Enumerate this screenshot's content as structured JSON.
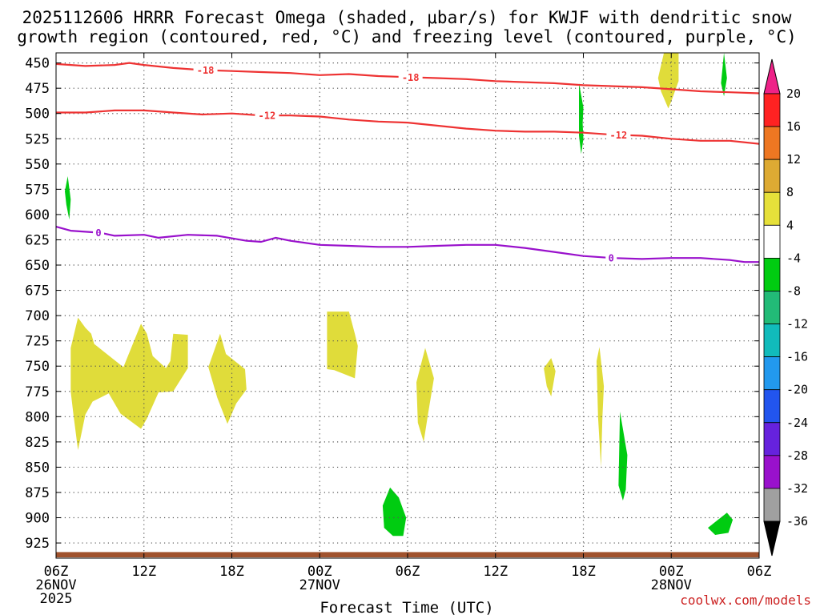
{
  "chart_data": {
    "type": "time-height",
    "title_line1": "2025112606 HRRR Forecast Omega (shaded, μbar/s) for KWJF with dendritic snow",
    "title_line2": "growth region (contoured, red, °C) and freezing level (contoured, purple, °C)",
    "xlabel": "Forecast Time (UTC)",
    "credit": "coolwx.com/models",
    "x_range_hours": [
      0,
      48
    ],
    "y_range_mb": [
      440,
      940
    ],
    "y_ticks": [
      450,
      475,
      500,
      525,
      550,
      575,
      600,
      625,
      650,
      675,
      700,
      725,
      750,
      775,
      800,
      825,
      850,
      875,
      900,
      925
    ],
    "x_ticks": [
      {
        "h": 0,
        "label": "06Z",
        "date": "26NOV",
        "year": "2025"
      },
      {
        "h": 6,
        "label": "12Z"
      },
      {
        "h": 12,
        "label": "18Z"
      },
      {
        "h": 18,
        "label": "00Z",
        "date": "27NOV"
      },
      {
        "h": 24,
        "label": "06Z"
      },
      {
        "h": 30,
        "label": "12Z"
      },
      {
        "h": 36,
        "label": "18Z"
      },
      {
        "h": 42,
        "label": "00Z",
        "date": "28NOV"
      },
      {
        "h": 48,
        "label": "06Z"
      }
    ],
    "contours": [
      {
        "name": "-18 C isotherm",
        "value": "-18",
        "color": "#ee3333",
        "label_h": [
          10.2,
          24.2
        ],
        "points": [
          [
            0,
            451
          ],
          [
            2,
            453
          ],
          [
            4,
            452
          ],
          [
            5,
            450
          ],
          [
            6,
            452
          ],
          [
            8,
            455
          ],
          [
            10,
            457
          ],
          [
            12,
            458
          ],
          [
            14,
            459
          ],
          [
            16,
            460
          ],
          [
            18,
            462
          ],
          [
            20,
            461
          ],
          [
            22,
            463
          ],
          [
            24,
            464
          ],
          [
            26,
            465
          ],
          [
            28,
            466
          ],
          [
            30,
            468
          ],
          [
            32,
            469
          ],
          [
            34,
            470
          ],
          [
            36,
            472
          ],
          [
            38,
            473
          ],
          [
            40,
            474
          ],
          [
            42,
            476
          ],
          [
            44,
            478
          ],
          [
            46,
            479
          ],
          [
            48,
            480
          ]
        ]
      },
      {
        "name": "-12 C isotherm",
        "value": "-12",
        "color": "#ee3333",
        "label_h": [
          14.4,
          38.4
        ],
        "points": [
          [
            0,
            499
          ],
          [
            2,
            499
          ],
          [
            4,
            497
          ],
          [
            6,
            497
          ],
          [
            8,
            499
          ],
          [
            10,
            501
          ],
          [
            12,
            500
          ],
          [
            14,
            502
          ],
          [
            16,
            502
          ],
          [
            18,
            503
          ],
          [
            20,
            506
          ],
          [
            22,
            508
          ],
          [
            24,
            509
          ],
          [
            26,
            512
          ],
          [
            28,
            515
          ],
          [
            30,
            517
          ],
          [
            32,
            518
          ],
          [
            34,
            518
          ],
          [
            36,
            519
          ],
          [
            38,
            521
          ],
          [
            40,
            522
          ],
          [
            42,
            525
          ],
          [
            44,
            527
          ],
          [
            46,
            527
          ],
          [
            48,
            530
          ]
        ]
      },
      {
        "name": "0 C freezing level",
        "value": "0",
        "color": "#9911cc",
        "label_h": [
          2.9,
          37.9
        ],
        "points": [
          [
            0,
            612
          ],
          [
            1,
            616
          ],
          [
            3,
            618
          ],
          [
            4,
            621
          ],
          [
            6,
            620
          ],
          [
            7,
            623
          ],
          [
            9,
            620
          ],
          [
            11,
            621
          ],
          [
            13,
            626
          ],
          [
            14,
            627
          ],
          [
            15,
            623
          ],
          [
            16,
            626
          ],
          [
            18,
            630
          ],
          [
            20,
            631
          ],
          [
            22,
            632
          ],
          [
            24,
            632
          ],
          [
            26,
            631
          ],
          [
            28,
            630
          ],
          [
            30,
            630
          ],
          [
            32,
            633
          ],
          [
            34,
            637
          ],
          [
            36,
            641
          ],
          [
            38,
            643
          ],
          [
            40,
            644
          ],
          [
            42,
            643
          ],
          [
            44,
            643
          ],
          [
            46,
            645
          ],
          [
            47,
            647
          ],
          [
            48,
            647
          ]
        ]
      }
    ],
    "shaded_regions": [
      {
        "level": "4 to 8",
        "color": "#e0dc3a",
        "points": [
          [
            41.5,
            440
          ],
          [
            42.5,
            440
          ],
          [
            42.5,
            468
          ],
          [
            42,
            488
          ],
          [
            41.8,
            495
          ],
          [
            41.3,
            478
          ],
          [
            41.1,
            465
          ]
        ]
      },
      {
        "level": "-4 to -8",
        "color": "#00cc11",
        "points": [
          [
            45.6,
            440
          ],
          [
            45.8,
            465
          ],
          [
            45.6,
            483
          ],
          [
            45.4,
            470
          ]
        ]
      },
      {
        "level": "-4 to -8",
        "color": "#00cc11",
        "points": [
          [
            36,
            494
          ],
          [
            35.95,
            510
          ],
          [
            36,
            525
          ],
          [
            35.85,
            540
          ],
          [
            35.7,
            522
          ],
          [
            35.7,
            470
          ]
        ]
      },
      {
        "level": "-4 to -8",
        "color": "#00cc11",
        "points": [
          [
            0.8,
            562
          ],
          [
            1,
            585
          ],
          [
            0.9,
            605
          ],
          [
            0.7,
            590
          ],
          [
            0.6,
            577
          ]
        ]
      },
      {
        "level": "4 to 8",
        "color": "#e0dc3a",
        "points": [
          [
            1,
            732
          ],
          [
            1.5,
            702
          ],
          [
            2,
            712
          ],
          [
            2.4,
            718
          ],
          [
            2.6,
            728
          ],
          [
            4.6,
            751
          ],
          [
            5.8,
            708
          ],
          [
            6.2,
            718
          ],
          [
            6.6,
            740
          ],
          [
            7.5,
            752
          ],
          [
            7.8,
            745
          ],
          [
            8,
            718
          ],
          [
            9,
            719
          ],
          [
            9,
            752
          ],
          [
            8,
            775
          ],
          [
            7,
            776
          ],
          [
            6.2,
            802
          ],
          [
            5.8,
            812
          ],
          [
            4.4,
            797
          ],
          [
            3.6,
            777
          ],
          [
            2.5,
            785
          ],
          [
            2,
            798
          ],
          [
            1.5,
            833
          ],
          [
            1.2,
            800
          ],
          [
            1,
            775
          ]
        ]
      },
      {
        "level": "4 to 8",
        "color": "#e0dc3a",
        "points": [
          [
            10.4,
            751
          ],
          [
            11.2,
            718
          ],
          [
            11.6,
            738
          ],
          [
            12.9,
            753
          ],
          [
            13,
            773
          ],
          [
            12.3,
            787
          ],
          [
            11.7,
            807
          ],
          [
            11,
            781
          ]
        ]
      },
      {
        "level": "4 to 8",
        "color": "#e0dc3a",
        "points": [
          [
            18.5,
            696
          ],
          [
            20,
            696
          ],
          [
            20.4,
            718
          ],
          [
            20.6,
            730
          ],
          [
            20.4,
            762
          ],
          [
            19,
            754
          ],
          [
            18.5,
            753
          ]
        ]
      },
      {
        "level": "4 to 8",
        "color": "#e0dc3a",
        "points": [
          [
            24.6,
            766
          ],
          [
            25.2,
            732
          ],
          [
            25.8,
            762
          ],
          [
            25.4,
            797
          ],
          [
            25.1,
            825
          ],
          [
            24.7,
            806
          ]
        ]
      },
      {
        "level": "4 to 8",
        "color": "#e0dc3a",
        "points": [
          [
            33.3,
            752
          ],
          [
            33.8,
            742
          ],
          [
            34.1,
            755
          ],
          [
            33.8,
            780
          ],
          [
            33.5,
            770
          ]
        ]
      },
      {
        "level": "4 to 8",
        "color": "#e0dc3a",
        "points": [
          [
            36.9,
            745
          ],
          [
            37.1,
            731
          ],
          [
            37.4,
            770
          ],
          [
            37.3,
            800
          ],
          [
            37.2,
            850
          ],
          [
            37,
            800
          ]
        ]
      },
      {
        "level": "-4 to -8",
        "color": "#00cc11",
        "points": [
          [
            38.5,
            795
          ],
          [
            39,
            838
          ],
          [
            38.9,
            872
          ],
          [
            38.7,
            883
          ],
          [
            38.4,
            868
          ]
        ]
      },
      {
        "level": "-4 to -8",
        "color": "#00cc11",
        "points": [
          [
            22.8,
            870
          ],
          [
            23.4,
            880
          ],
          [
            23.9,
            900
          ],
          [
            23.7,
            918
          ],
          [
            23,
            918
          ],
          [
            22.4,
            910
          ],
          [
            22.3,
            888
          ]
        ]
      },
      {
        "level": "-4 to -8",
        "color": "#00cc11",
        "points": [
          [
            44.5,
            910
          ],
          [
            45.8,
            895
          ],
          [
            46.2,
            902
          ],
          [
            45.9,
            915
          ],
          [
            45,
            917
          ]
        ]
      }
    ],
    "terrain": {
      "color": "#a0522d",
      "top_mb": 934
    },
    "colorbar": {
      "ticks": [
        "20",
        "16",
        "12",
        "8",
        "4",
        "-4",
        "-8",
        "-12",
        "-16",
        "-20",
        "-24",
        "-28",
        "-32",
        "-36"
      ],
      "colors": [
        "#ff2222",
        "#ee7722",
        "#ddaa33",
        "#e6e03a",
        "#ffffff",
        "#00cc11",
        "#22bb77",
        "#11bbbb",
        "#2299ee",
        "#2255ee",
        "#6622dd",
        "#9911cc",
        "#a0a0a0"
      ],
      "top_arrow_color": "#ee2288",
      "bottom_arrow_color": "#000000"
    }
  }
}
